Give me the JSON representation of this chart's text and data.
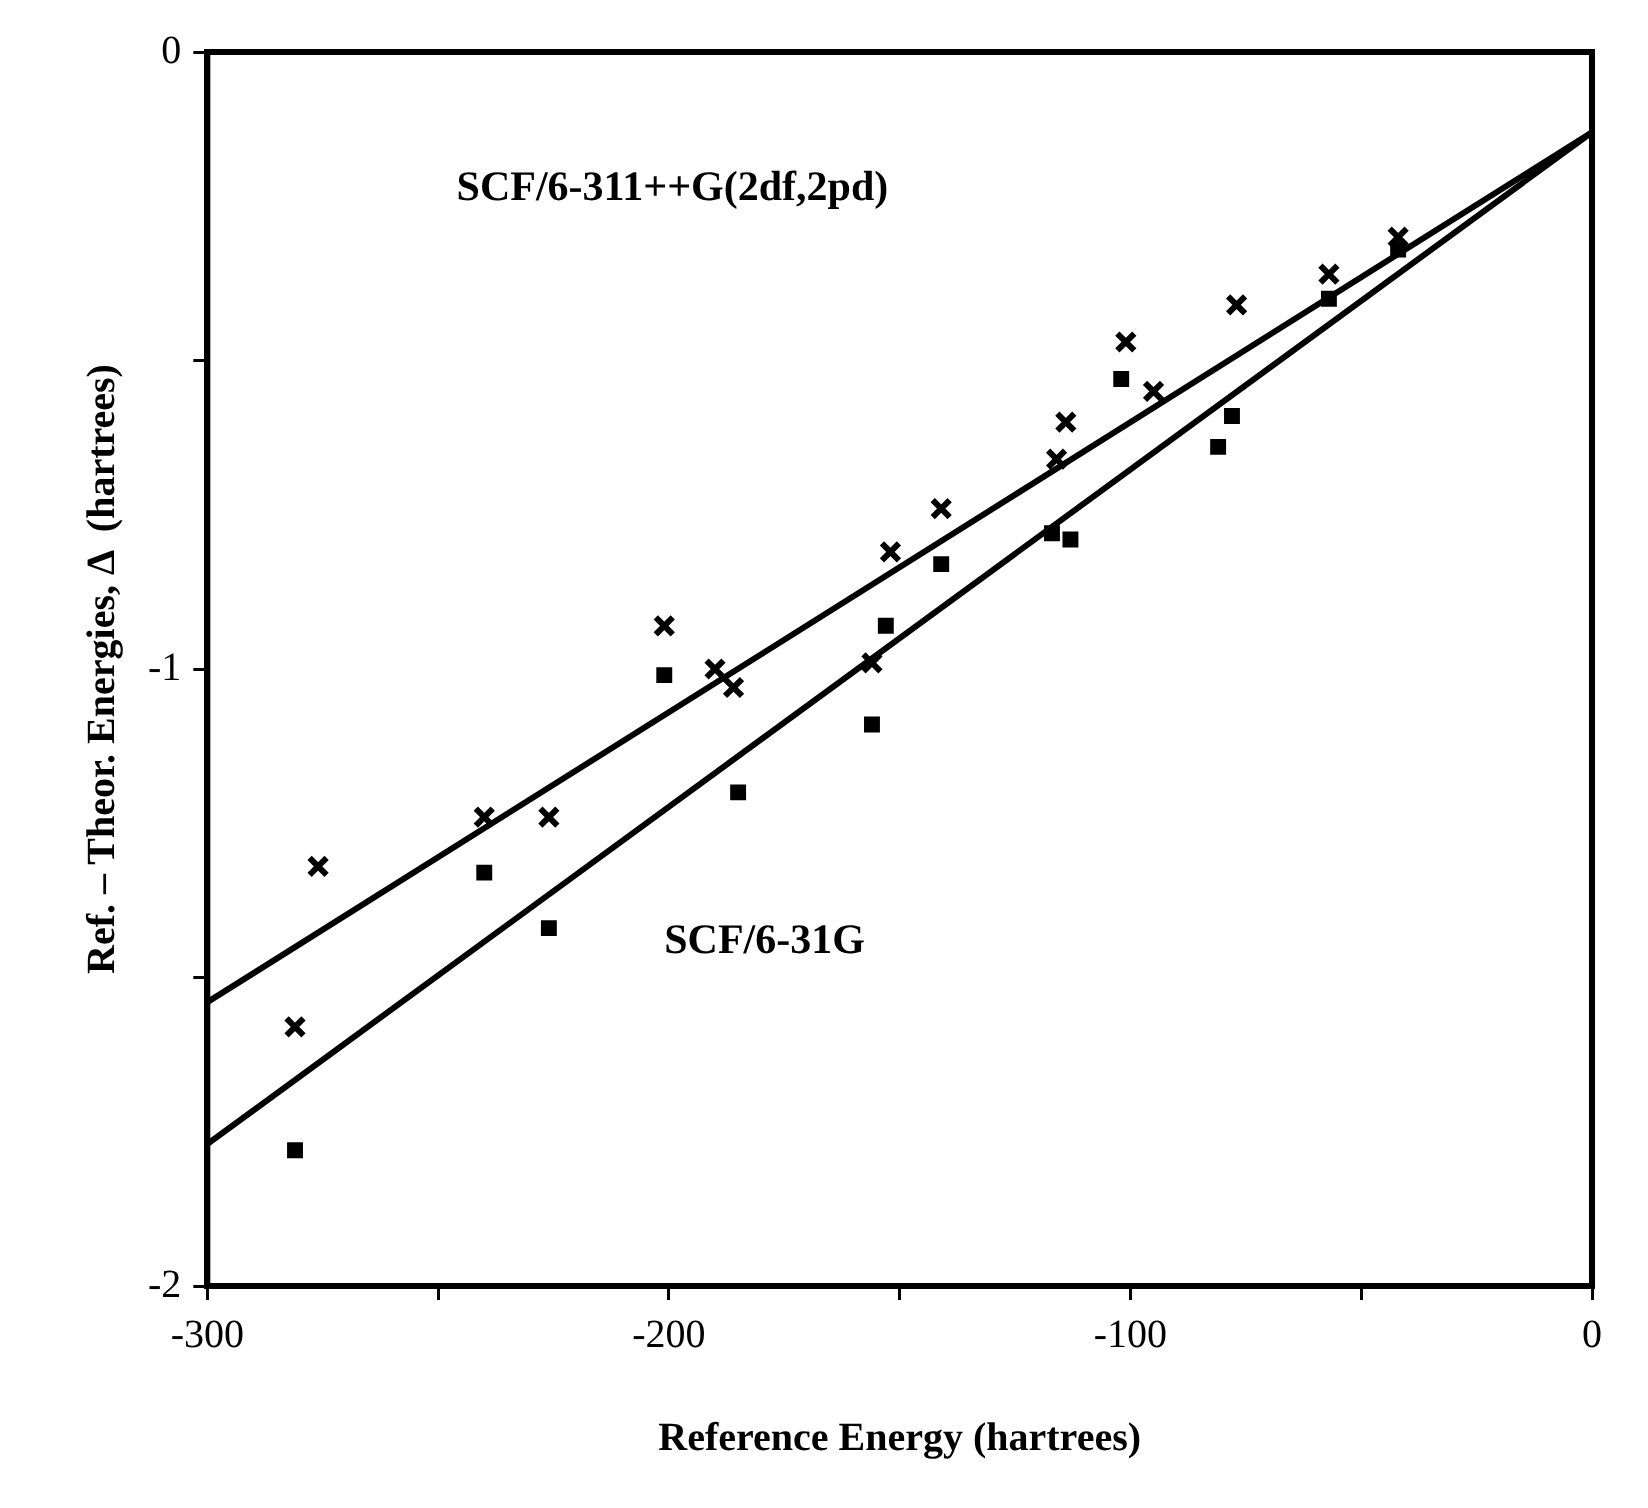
{
  "chart_data": {
    "type": "scatter",
    "xlabel": "Reference Energy (hartrees)",
    "ylabel": "Ref. – Theor. Energies, Δ  (hartrees)",
    "annotations": [
      "SCF/6-311++G(2df,2pd)",
      "SCF/6-31G"
    ],
    "xlim": [
      -300,
      0
    ],
    "xticks": [
      -300,
      {
        "value": -250,
        "label": null
      },
      -200,
      {
        "value": -150,
        "label": null
      },
      -100,
      {
        "value": -50,
        "label": null
      },
      0
    ],
    "ylim": [
      -2,
      0
    ],
    "yticks": [
      -2,
      {
        "value": -1.5,
        "label": null
      },
      -1,
      {
        "value": -0.5,
        "label": null
      },
      0
    ],
    "grid": false,
    "legend": false,
    "series": [
      {
        "type": "scatter",
        "marker": "cross",
        "color": "#000000",
        "x": [
          -281,
          -276,
          -240,
          -226,
          -201,
          -190,
          -186,
          -156,
          -152,
          -141,
          -116,
          -114,
          -101,
          -95,
          -77,
          -57,
          -42
        ],
        "values": [
          -1.58,
          -1.32,
          -1.24,
          -1.24,
          -0.93,
          -1.0,
          -1.03,
          -0.99,
          -0.81,
          -0.74,
          -0.66,
          -0.6,
          -0.47,
          -0.55,
          -0.41,
          -0.36,
          -0.3
        ]
      },
      {
        "type": "scatter",
        "marker": "square",
        "color": "#000000",
        "x": [
          -281,
          -240,
          -226,
          -201,
          -185,
          -156,
          -153,
          -141,
          -117,
          -113,
          -102,
          -81,
          -78,
          -57,
          -42
        ],
        "values": [
          -1.78,
          -1.33,
          -1.42,
          -1.01,
          -1.2,
          -1.09,
          -0.93,
          -0.83,
          -0.78,
          -0.79,
          -0.53,
          -0.64,
          -0.59,
          -0.4,
          -0.32
        ]
      },
      {
        "type": "line",
        "marker": "none",
        "color": "#000000",
        "x": [
          -300,
          0
        ],
        "values": [
          -1.54,
          -0.13
        ]
      },
      {
        "type": "line",
        "marker": "none",
        "color": "#000000",
        "x": [
          -300,
          0
        ],
        "values": [
          -1.77,
          -0.13
        ]
      }
    ]
  }
}
